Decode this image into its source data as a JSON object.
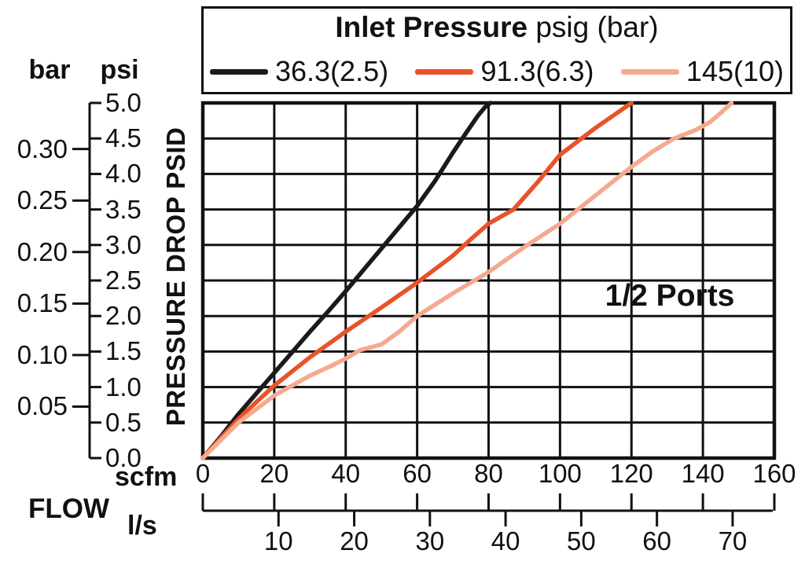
{
  "legend": {
    "title_bold": "Inlet Pressure",
    "title_regular": " psig (bar)",
    "entries": [
      {
        "label": "36.3(2.5)",
        "color": "#1a1a1a"
      },
      {
        "label": "91.3(6.3)",
        "color": "#e8532b"
      },
      {
        "label": "145(10)",
        "color": "#f5a98f"
      }
    ]
  },
  "y_axis": {
    "header_bar": "bar",
    "header_psi": "psi",
    "axis_label": "PRESSURE DROP PSID",
    "psi_ticks": [
      "5.0",
      "4.5",
      "4.0",
      "3.5",
      "3.0",
      "2.5",
      "2.0",
      "1.5",
      "1.0",
      "0.5",
      "0.0"
    ],
    "bar_ticks": [
      "0.30",
      "0.25",
      "0.20",
      "0.15",
      "0.10",
      "0.05"
    ]
  },
  "x_axis": {
    "label_flow": "FLOW",
    "label_scfm": "scfm",
    "label_ls": "l/s",
    "scfm_ticks": [
      "0",
      "20",
      "40",
      "60",
      "80",
      "100",
      "120",
      "140",
      "160"
    ],
    "ls_ticks": [
      "10",
      "20",
      "30",
      "40",
      "50",
      "60",
      "70"
    ]
  },
  "annotation": "1/2 Ports",
  "colors": {
    "frame": "#111111",
    "grid": "#111111"
  },
  "chart_data": {
    "type": "line",
    "title": "Inlet Pressure psig (bar)",
    "xlabel": "FLOW scfm (l/s)",
    "ylabel": "PRESSURE DROP PSID (psi / bar)",
    "xlim_scfm": [
      0,
      160
    ],
    "ylim_psi": [
      0,
      5
    ],
    "x_grid_step_scfm": 20,
    "y_grid_step_psi": 0.5,
    "secondary_y_ticks_bar": [
      0.05,
      0.1,
      0.15,
      0.2,
      0.25,
      0.3
    ],
    "secondary_x_ticks_ls": [
      10,
      20,
      30,
      40,
      50,
      60,
      70
    ],
    "grid": true,
    "legend_position": "top",
    "annotation": "1/2 Ports",
    "series": [
      {
        "name": "36.3(2.5)",
        "inlet_psig": 36.3,
        "inlet_bar": 2.5,
        "color": "#1a1a1a",
        "points": [
          [
            0,
            0
          ],
          [
            5,
            0.3
          ],
          [
            10,
            0.62
          ],
          [
            15,
            0.91
          ],
          [
            20,
            1.2
          ],
          [
            25,
            1.49
          ],
          [
            30,
            1.78
          ],
          [
            35,
            2.06
          ],
          [
            40,
            2.35
          ],
          [
            45,
            2.65
          ],
          [
            50,
            2.95
          ],
          [
            55,
            3.25
          ],
          [
            60,
            3.55
          ],
          [
            65,
            3.9
          ],
          [
            70,
            4.3
          ],
          [
            74,
            4.6
          ],
          [
            77,
            4.82
          ],
          [
            79,
            4.94
          ],
          [
            80.5,
            5.0
          ]
        ]
      },
      {
        "name": "91.3(6.3)",
        "inlet_psig": 91.3,
        "inlet_bar": 6.3,
        "color": "#e8532b",
        "points": [
          [
            0,
            0
          ],
          [
            5,
            0.28
          ],
          [
            10,
            0.55
          ],
          [
            15,
            0.79
          ],
          [
            20,
            1.02
          ],
          [
            30,
            1.42
          ],
          [
            40,
            1.78
          ],
          [
            50,
            2.12
          ],
          [
            60,
            2.47
          ],
          [
            70,
            2.85
          ],
          [
            75,
            3.08
          ],
          [
            80,
            3.3
          ],
          [
            87,
            3.5
          ],
          [
            94,
            3.9
          ],
          [
            100,
            4.27
          ],
          [
            110,
            4.65
          ],
          [
            120,
            5.0
          ]
        ]
      },
      {
        "name": "145(10)",
        "inlet_psig": 145,
        "inlet_bar": 10,
        "color": "#f5a98f",
        "points": [
          [
            0,
            0
          ],
          [
            10,
            0.5
          ],
          [
            20,
            0.88
          ],
          [
            30,
            1.16
          ],
          [
            36,
            1.3
          ],
          [
            40,
            1.4
          ],
          [
            44,
            1.52
          ],
          [
            50,
            1.6
          ],
          [
            55,
            1.78
          ],
          [
            60,
            2.0
          ],
          [
            70,
            2.32
          ],
          [
            80,
            2.62
          ],
          [
            90,
            2.97
          ],
          [
            100,
            3.3
          ],
          [
            110,
            3.7
          ],
          [
            120,
            4.1
          ],
          [
            126,
            4.32
          ],
          [
            132,
            4.5
          ],
          [
            138,
            4.62
          ],
          [
            142,
            4.73
          ],
          [
            145,
            4.86
          ],
          [
            147,
            4.95
          ],
          [
            148,
            5.0
          ]
        ]
      }
    ]
  }
}
